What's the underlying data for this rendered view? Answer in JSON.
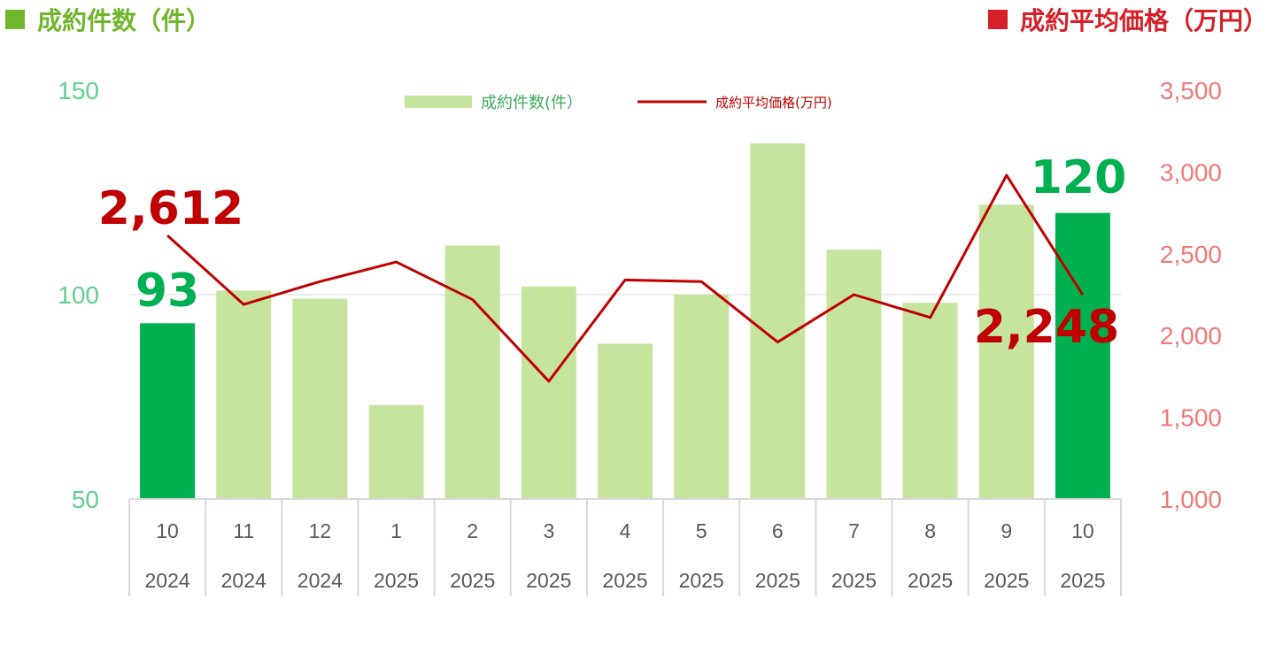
{
  "header": {
    "left_title": "成約件数（件）",
    "right_title": "成約平均価格（万円）"
  },
  "colors": {
    "bar": "#c5e59e",
    "bar_highlight": "#00b050",
    "line": "#c00000",
    "left_axis": "#5fcf8e",
    "right_axis": "#f07878"
  },
  "chart_data": {
    "type": "bar",
    "categories": [
      [
        "10",
        "2024"
      ],
      [
        "11",
        "2024"
      ],
      [
        "12",
        "2024"
      ],
      [
        "1",
        "2025"
      ],
      [
        "2",
        "2025"
      ],
      [
        "3",
        "2025"
      ],
      [
        "4",
        "2025"
      ],
      [
        "5",
        "2025"
      ],
      [
        "6",
        "2025"
      ],
      [
        "7",
        "2025"
      ],
      [
        "8",
        "2025"
      ],
      [
        "9",
        "2025"
      ],
      [
        "10",
        "2025"
      ]
    ],
    "series": [
      {
        "name": "成約件数(件）",
        "type": "bar",
        "axis": "left",
        "values": [
          93,
          101,
          99,
          73,
          112,
          102,
          88,
          100,
          137,
          111,
          98,
          122,
          120
        ],
        "highlighted": [
          0,
          12
        ]
      },
      {
        "name": "成約平均価格(万円)",
        "type": "line",
        "axis": "right",
        "values": [
          2612,
          2190,
          2330,
          2450,
          2220,
          1720,
          2340,
          2330,
          1960,
          2250,
          2110,
          2980,
          2248
        ]
      }
    ],
    "left_axis": {
      "ylim": [
        50,
        150
      ],
      "ticks": [
        "50",
        "100",
        "150"
      ]
    },
    "right_axis": {
      "ylim": [
        1000,
        3500
      ],
      "ticks": [
        "1,000",
        "1,500",
        "2,000",
        "2,500",
        "3,000",
        "3,500"
      ]
    },
    "grid": "only at 100 on left axis",
    "legend": "top-center",
    "annotations": {
      "first_count": "93",
      "last_count": "120",
      "first_price": "2,612",
      "last_price": "2,248"
    }
  }
}
